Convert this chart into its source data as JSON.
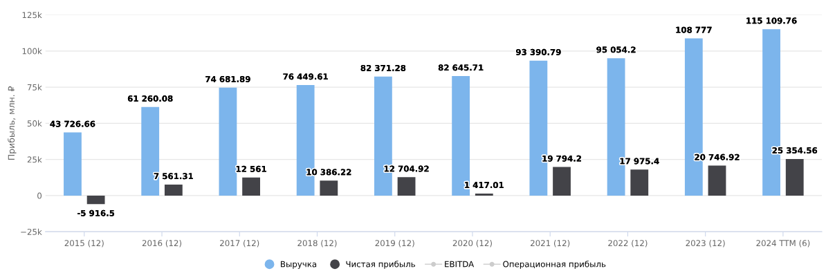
{
  "chart_data": {
    "type": "bar",
    "ylabel": "Прибыль, млн. ₽",
    "categories": [
      "2015 (12)",
      "2016 (12)",
      "2017 (12)",
      "2018 (12)",
      "2019 (12)",
      "2020 (12)",
      "2021 (12)",
      "2022 (12)",
      "2023 (12)",
      "2024 TTM (6)"
    ],
    "series": [
      {
        "name": "Выручка",
        "color": "#7cb5ec",
        "values": [
          43726.66,
          61260.08,
          74681.89,
          76449.61,
          82371.28,
          82645.71,
          93390.79,
          95054.2,
          108777,
          115109.76
        ],
        "value_labels": [
          "43 726.66",
          "61 260.08",
          "74 681.89",
          "76 449.61",
          "82 371.28",
          "82 645.71",
          "93 390.79",
          "95 054.2",
          "108 777",
          "115 109.76"
        ]
      },
      {
        "name": "Чистая прибыль",
        "color": "#434348",
        "values": [
          -5916.5,
          7561.31,
          12561,
          10386.22,
          12704.92,
          1417.01,
          19794.2,
          17975.4,
          20746.92,
          25354.56
        ],
        "value_labels": [
          "-5 916.5",
          "7 561.31",
          "12 561",
          "10 386.22",
          "12 704.92",
          "1 417.01",
          "19 794.2",
          "17 975.4",
          "20 746.92",
          "25 354.56"
        ]
      },
      {
        "name": "EBITDA",
        "color": "#cccccc",
        "type": "line",
        "marker": "circle",
        "values": [
          null,
          null,
          null,
          null,
          null,
          null,
          null,
          null,
          null,
          null
        ]
      },
      {
        "name": "Операционная прибыль",
        "color": "#cccccc",
        "type": "line",
        "marker": "circle",
        "values": [
          null,
          null,
          null,
          null,
          null,
          null,
          null,
          null,
          null,
          null
        ]
      }
    ],
    "ylim": [
      -25000,
      125000
    ],
    "yticks": [
      {
        "value": -25000,
        "label": "−25k"
      },
      {
        "value": 0,
        "label": "0"
      },
      {
        "value": 25000,
        "label": "25k"
      },
      {
        "value": 50000,
        "label": "50k"
      },
      {
        "value": 75000,
        "label": "75k"
      },
      {
        "value": 100000,
        "label": "100k"
      },
      {
        "value": 125000,
        "label": "125k"
      }
    ],
    "grid": "y",
    "legend": "bottom"
  }
}
